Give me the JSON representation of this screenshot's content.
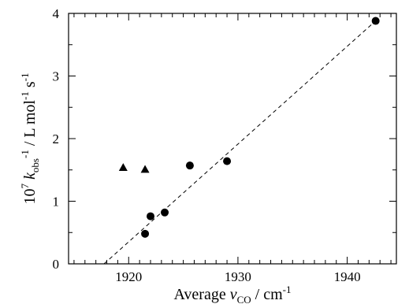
{
  "chart_data": {
    "type": "scatter",
    "xlabel": {
      "prefix": "Average ",
      "symbol": "ν",
      "subscript": "CO",
      "unit": " / cm",
      "unit_sup": "-1"
    },
    "ylabel": {
      "prefix": "10",
      "prefix_sup": "7",
      "symbol": " k",
      "subscript": "obs",
      "sup": "-1",
      "unit": " / L mol",
      "unit_sup1": "-1",
      "unit_mid": " s",
      "unit_sup2": "-1"
    },
    "xlim": [
      1914.5,
      1944.5
    ],
    "ylim": [
      0,
      4
    ],
    "x_major_ticks": [
      1920,
      1930,
      1940
    ],
    "x_minor_step": 1,
    "y_major_ticks": [
      0,
      1,
      2,
      3,
      4
    ],
    "y_minor_step": 0.5,
    "grid": false,
    "series": [
      {
        "marker": "circle",
        "color": "#000000",
        "x": [
          1921.5,
          1922.0,
          1923.3,
          1925.6,
          1929.0,
          1942.6
        ],
        "y": [
          0.48,
          0.76,
          0.82,
          1.57,
          1.64,
          3.88
        ]
      },
      {
        "marker": "triangle",
        "color": "#000000",
        "x": [
          1919.5,
          1921.5
        ],
        "y": [
          1.54,
          1.51
        ]
      }
    ],
    "fit_line": {
      "style": "dashed",
      "color": "#000000",
      "x": [
        1917.75,
        1942.6
      ],
      "y": [
        0,
        3.88
      ]
    }
  }
}
